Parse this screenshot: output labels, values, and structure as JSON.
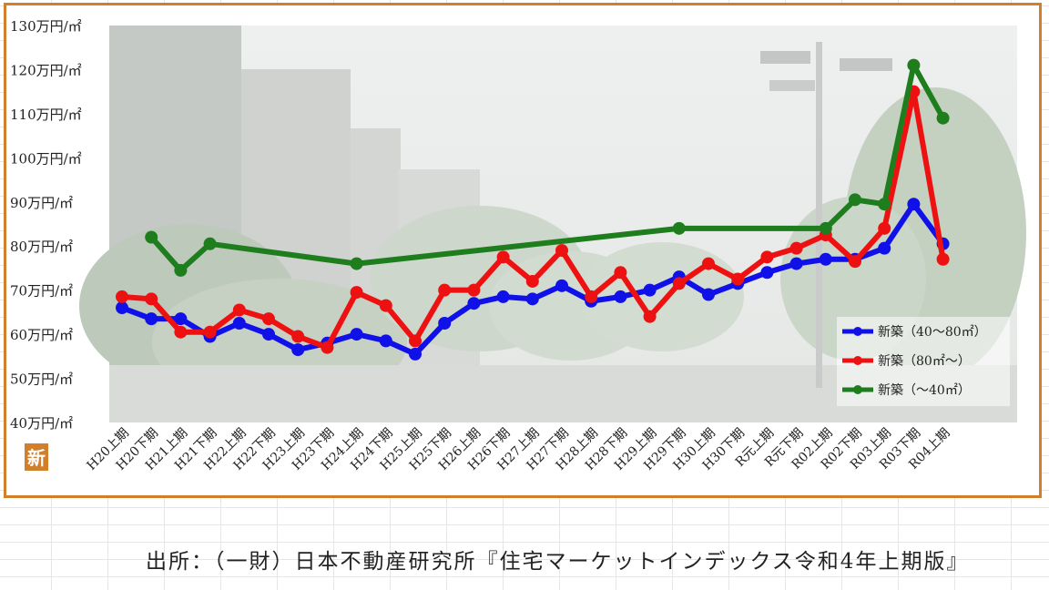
{
  "chart_data": {
    "type": "line",
    "ylim": [
      40,
      130
    ],
    "y_tick_values": [
      40,
      50,
      60,
      70,
      80,
      90,
      100,
      110,
      120,
      130
    ],
    "y_tick_labels": [
      "40万円/㎡",
      "50万円/㎡",
      "60万円/㎡",
      "70万円/㎡",
      "80万円/㎡",
      "90万円/㎡",
      "100万円/㎡",
      "110万円/㎡",
      "120万円/㎡",
      "130万円/㎡"
    ],
    "categories": [
      "H20上期",
      "H20下期",
      "H21上期",
      "H21下期",
      "H22上期",
      "H22下期",
      "H23上期",
      "H23下期",
      "H24上期",
      "H24下期",
      "H25上期",
      "H25下期",
      "H26上期",
      "H26下期",
      "H27上期",
      "H27下期",
      "H28上期",
      "H28下期",
      "H29上期",
      "H29下期",
      "H30上期",
      "H30下期",
      "R元上期",
      "R元下期",
      "R02上期",
      "R02下期",
      "R03上期",
      "R03下期",
      "R04上期"
    ],
    "series": [
      {
        "name": "新築（40～80㎡）",
        "color": "#1010e8",
        "values": [
          66,
          63.5,
          63.5,
          59.5,
          62.5,
          60,
          56.5,
          58,
          60,
          58.5,
          55.5,
          62.5,
          67,
          68.5,
          68,
          71,
          67.5,
          68.5,
          70,
          73,
          69,
          71.5,
          74,
          76,
          77,
          77,
          79.5,
          89.5,
          80.5
        ]
      },
      {
        "name": "新築（80㎡～）",
        "color": "#ee1111",
        "values": [
          68.5,
          68,
          60.5,
          60.5,
          65.5,
          63.5,
          59.5,
          57,
          69.5,
          66.5,
          58.5,
          70,
          70,
          77.5,
          72,
          79,
          68.5,
          74,
          64,
          71.5,
          76,
          72.5,
          77.5,
          79.5,
          82.5,
          76.5,
          84,
          115,
          77
        ]
      },
      {
        "name": "新築（～40㎡）",
        "color": "#1e7e1e",
        "values": [
          null,
          82,
          74.5,
          80.5,
          null,
          null,
          null,
          null,
          76,
          null,
          null,
          null,
          null,
          null,
          null,
          null,
          null,
          null,
          null,
          84,
          null,
          null,
          null,
          null,
          84,
          90.5,
          89.5,
          121,
          109
        ]
      }
    ],
    "legend_position": "bottom-right",
    "grid": false
  },
  "icon": {
    "name": "shin-kanji-icon",
    "text": "新",
    "color": "#d27f2c"
  },
  "source": "出所：（一財）日本不動産研究所『住宅マーケットインデックス令和4年上期版』"
}
